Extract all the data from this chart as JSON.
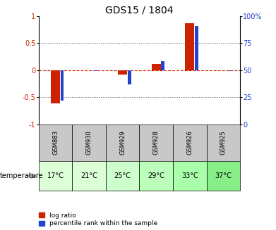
{
  "title": "GDS15 / 1804",
  "samples": [
    "GSM883",
    "GSM930",
    "GSM929",
    "GSM928",
    "GSM926",
    "GSM925"
  ],
  "temperatures": [
    "17°C",
    "21°C",
    "25°C",
    "29°C",
    "33°C",
    "37°C"
  ],
  "log_ratio": [
    -0.62,
    0.0,
    -0.08,
    0.12,
    0.87,
    0.0
  ],
  "pct_scaled": [
    -0.56,
    -0.02,
    -0.26,
    0.17,
    0.81,
    -0.02
  ],
  "ylim": [
    -1.0,
    1.0
  ],
  "bar_color_red": "#cc2200",
  "bar_color_blue": "#2244cc",
  "zero_line_color": "#cc2200",
  "dotted_line_color": "#555555",
  "temp_colors": [
    "#ddffd8",
    "#ddffd8",
    "#ccffcc",
    "#bbffbb",
    "#aaffaa",
    "#88ee88"
  ],
  "gsm_bg_color": "#c8c8c8",
  "legend_red_label": "log ratio",
  "legend_blue_label": "percentile rank within the sample",
  "red_bar_width": 0.28,
  "blue_bar_width": 0.1,
  "title_fontsize": 10,
  "tick_fontsize": 7,
  "gsm_fontsize": 6,
  "temp_fontsize": 7
}
